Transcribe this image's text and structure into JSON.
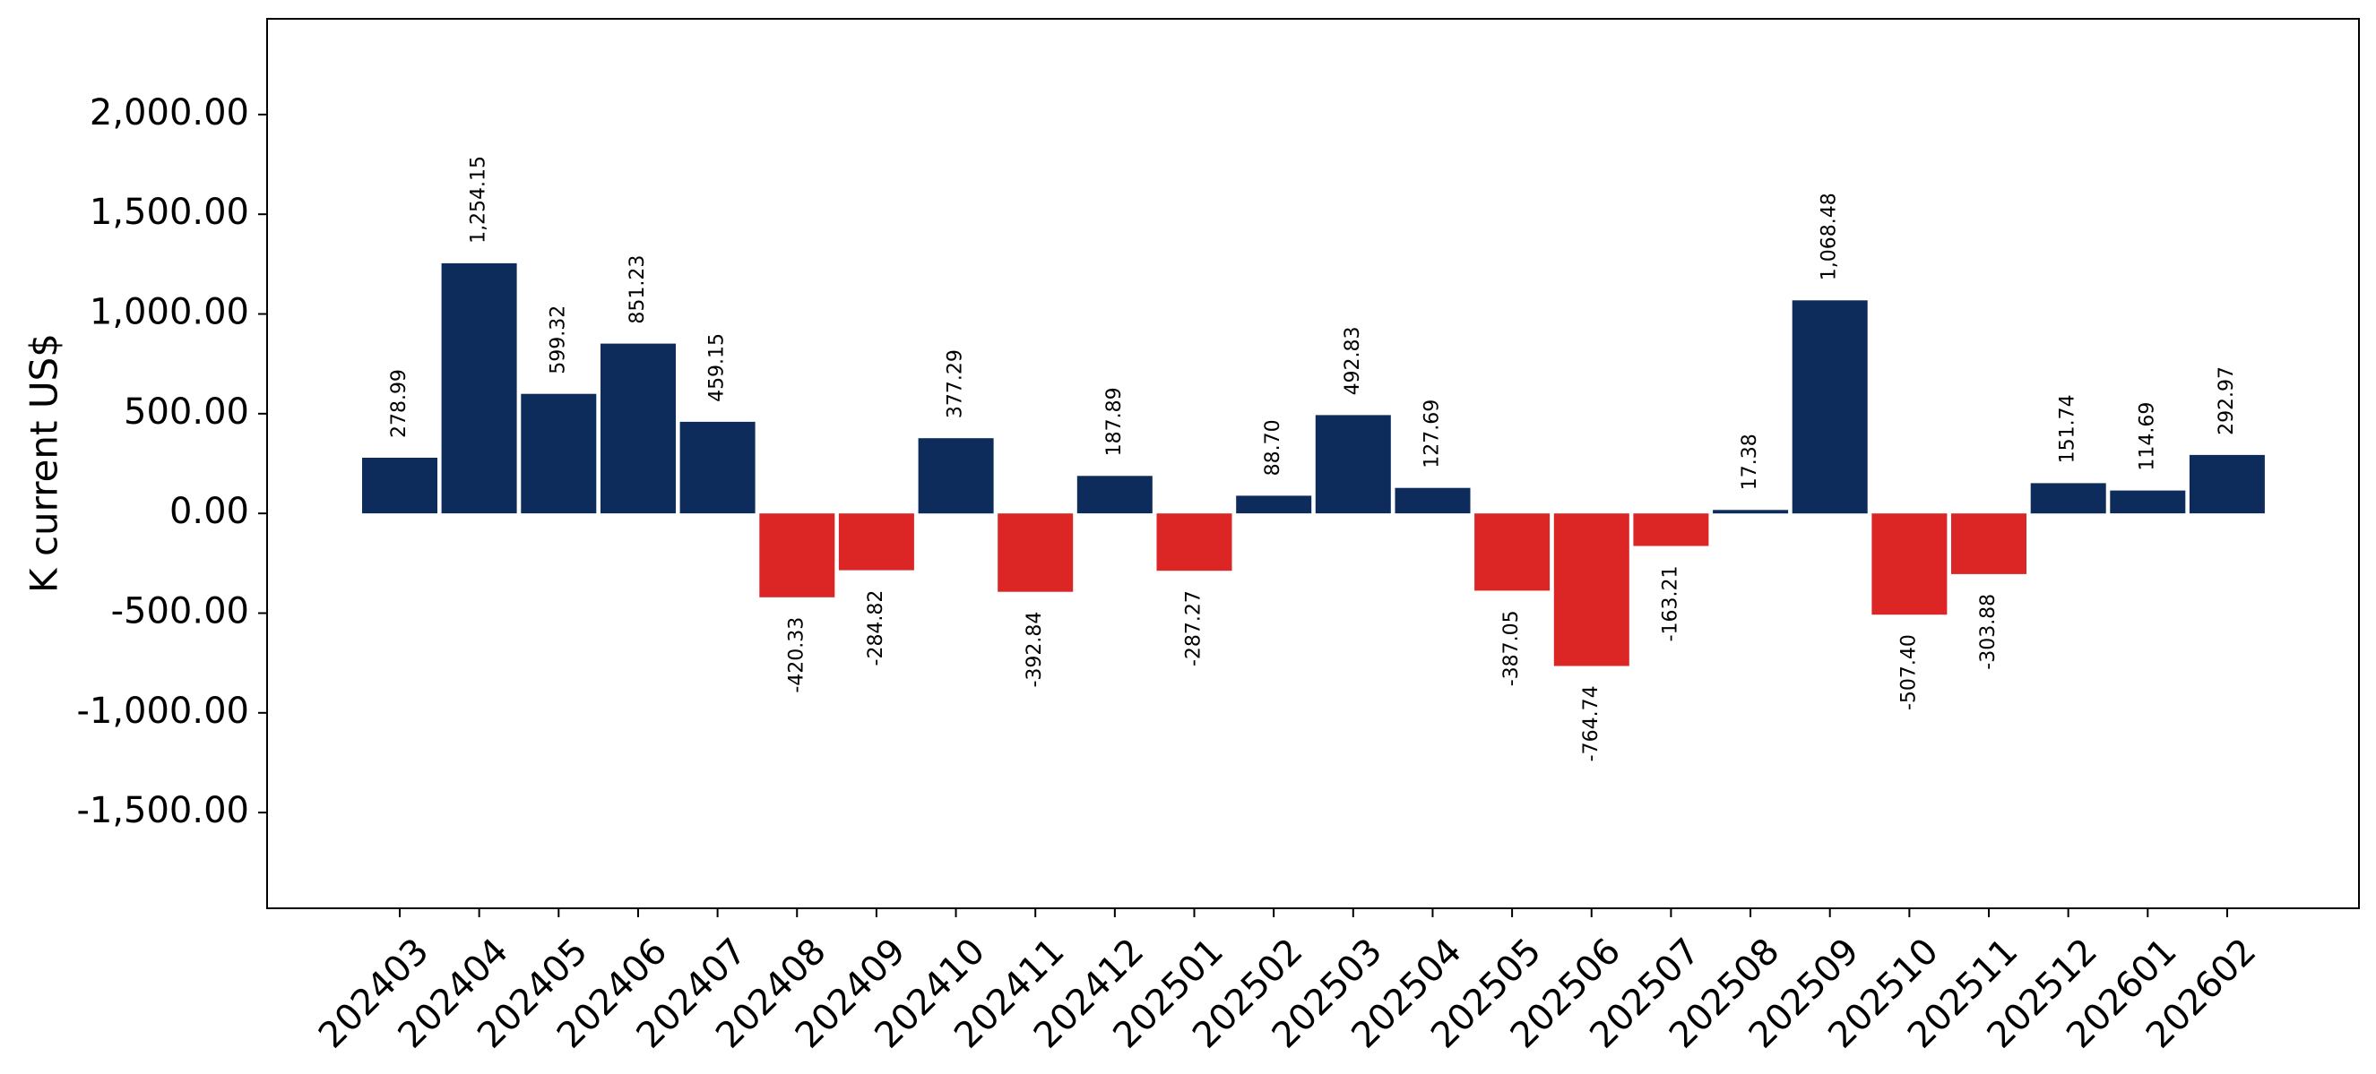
{
  "chart_data": {
    "type": "bar",
    "ylabel": "K current US$",
    "xlabel": "",
    "title": "",
    "ylim": [
      -1980,
      2480
    ],
    "yticks": [
      -1500,
      -1000,
      -500,
      0,
      500,
      1000,
      1500,
      2000
    ],
    "ytick_labels": [
      "-1,500.00",
      "-1,000.00",
      "-500.00",
      "0.00",
      "500.00",
      "1,000.00",
      "1,500.00",
      "2,000.00"
    ],
    "categories": [
      "202403",
      "202404",
      "202405",
      "202406",
      "202407",
      "202408",
      "202409",
      "202410",
      "202411",
      "202412",
      "202501",
      "202502",
      "202503",
      "202504",
      "202505",
      "202506",
      "202507",
      "202508",
      "202509",
      "202510",
      "202511",
      "202512",
      "202601",
      "202602"
    ],
    "values": [
      278.99,
      1254.15,
      599.32,
      851.23,
      459.15,
      -420.33,
      -284.82,
      377.29,
      -392.84,
      187.89,
      -287.27,
      88.7,
      492.83,
      127.69,
      -387.05,
      -764.74,
      -163.21,
      17.38,
      1068.48,
      -507.4,
      -303.88,
      151.74,
      114.69,
      292.97
    ],
    "value_labels": [
      "278.99",
      "1,254.15",
      "599.32",
      "851.23",
      "459.15",
      "-420.33",
      "-284.82",
      "377.29",
      "-392.84",
      "187.89",
      "-287.27",
      "88.70",
      "492.83",
      "127.69",
      "-387.05",
      "-764.74",
      "-163.21",
      "17.38",
      "1,068.48",
      "-507.40",
      "-303.88",
      "151.74",
      "114.69",
      "292.97"
    ],
    "colors": {
      "positive": "#0d2b5b",
      "negative": "#dc2626"
    },
    "grid": false,
    "legend": "none"
  }
}
